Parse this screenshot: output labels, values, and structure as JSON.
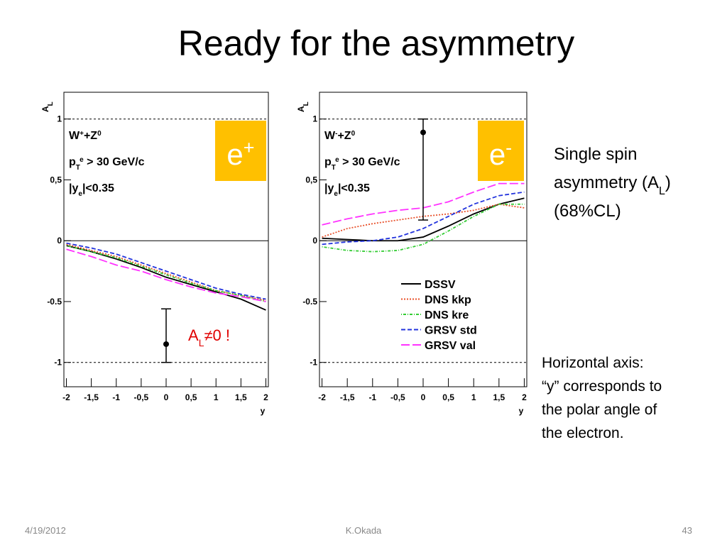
{
  "title": "Ready for the asymmetry",
  "side_text": {
    "lines": [
      [
        {
          "t": "Single spin"
        }
      ],
      [
        {
          "t": "asymmetry (A"
        },
        {
          "t": "L",
          "sub": true
        },
        {
          "t": ")"
        }
      ],
      [
        {
          "t": "(68%CL)"
        }
      ]
    ]
  },
  "note": {
    "lines": [
      "Horizontal axis:",
      "“y” corresponds to",
      "the polar angle of",
      "the electron."
    ]
  },
  "footer": {
    "date": "4/19/2012",
    "author": "K.Okada",
    "page": "43"
  },
  "chart_data": [
    {
      "type": "line",
      "ylabel": [
        {
          "t": "A"
        },
        {
          "t": "L",
          "sub": true
        }
      ],
      "xlabel": "y",
      "xlim": [
        -2.05,
        2.05
      ],
      "ylim": [
        -1.2,
        1.22
      ],
      "xticks": [
        -2,
        {
          "value": -1.5,
          "label": "-1,5"
        },
        -1,
        {
          "value": -0.5,
          "label": "-0,5"
        },
        0,
        {
          "value": 0.5,
          "label": "0,5"
        },
        1,
        {
          "value": 1.5,
          "label": "1,5"
        },
        2
      ],
      "yticks": [
        -1,
        -0.5,
        0,
        {
          "value": 0.5,
          "label": "0,5"
        },
        1
      ],
      "reflines": [
        {
          "value": 1,
          "style": "dashed"
        },
        {
          "value": 0,
          "style": "solid"
        },
        {
          "value": -1,
          "style": "dashed"
        }
      ],
      "x": [
        -2,
        -1.5,
        -1,
        -0.5,
        0,
        0.5,
        1,
        1.5,
        2
      ],
      "series": [
        {
          "color": "#000000",
          "style": "solid",
          "values": [
            -0.04,
            -0.09,
            -0.15,
            -0.22,
            -0.3,
            -0.36,
            -0.42,
            -0.48,
            -0.57
          ]
        },
        {
          "color": "#e8502a",
          "style": "dotted",
          "values": [
            -0.03,
            -0.08,
            -0.13,
            -0.2,
            -0.27,
            -0.34,
            -0.41,
            -0.45,
            -0.49
          ]
        },
        {
          "color": "#33cc33",
          "style": "dashdot",
          "values": [
            -0.04,
            -0.09,
            -0.14,
            -0.21,
            -0.28,
            -0.35,
            -0.41,
            -0.45,
            -0.5
          ]
        },
        {
          "color": "#2233dd",
          "style": "dashed",
          "values": [
            -0.02,
            -0.06,
            -0.11,
            -0.18,
            -0.25,
            -0.32,
            -0.39,
            -0.44,
            -0.48
          ]
        },
        {
          "color": "#ff33ff",
          "style": "longdash",
          "values": [
            -0.07,
            -0.13,
            -0.2,
            -0.25,
            -0.32,
            -0.38,
            -0.43,
            -0.46,
            -0.5
          ]
        }
      ],
      "points": [
        {
          "x": 0,
          "y": -0.85,
          "ylow": -1,
          "yhigh": -0.56
        }
      ],
      "annotation": [
        [
          {
            "t": "W"
          },
          {
            "t": "+",
            "sup": true
          },
          {
            "t": "+Z"
          },
          {
            "t": "0",
            "sup": true
          }
        ],
        [
          {
            "t": "p"
          },
          {
            "t": "T",
            "sub": true
          },
          {
            "t": "e",
            "sup": true
          },
          {
            "t": " > 30 GeV/c"
          }
        ],
        [
          {
            "t": "|y"
          },
          {
            "t": "e",
            "sub": true
          },
          {
            "t": "|<0.35"
          }
        ]
      ],
      "badge": [
        {
          "t": "e"
        },
        {
          "t": "+",
          "sup": true
        }
      ],
      "callout": [
        {
          "t": "A"
        },
        {
          "t": "L",
          "sub": true
        },
        {
          "t": "≠0 !"
        }
      ]
    },
    {
      "type": "line",
      "ylabel": [
        {
          "t": "A"
        },
        {
          "t": "L",
          "sub": true
        }
      ],
      "xlabel": "y",
      "xlim": [
        -2.05,
        2.05
      ],
      "ylim": [
        -1.2,
        1.22
      ],
      "xticks": [
        -2,
        {
          "value": -1.5,
          "label": "-1,5"
        },
        -1,
        {
          "value": -0.5,
          "label": "-0,5"
        },
        0,
        {
          "value": 0.5,
          "label": "0,5"
        },
        1,
        {
          "value": 1.5,
          "label": "1,5"
        },
        2
      ],
      "yticks": [
        -1,
        -0.5,
        0,
        {
          "value": 0.5,
          "label": "0,5"
        },
        1
      ],
      "reflines": [
        {
          "value": 1,
          "style": "dashed"
        },
        {
          "value": 0,
          "style": "solid"
        },
        {
          "value": -1,
          "style": "dashed"
        }
      ],
      "x": [
        -2,
        -1.5,
        -1,
        -0.5,
        0,
        0.5,
        1,
        1.5,
        2
      ],
      "legend": "lower right",
      "series": [
        {
          "name": "DSSV",
          "color": "#000000",
          "style": "solid",
          "values": [
            0.02,
            0.01,
            0,
            0,
            0.03,
            0.12,
            0.22,
            0.3,
            0.35
          ]
        },
        {
          "name": "DNS kkp",
          "color": "#e8502a",
          "style": "dotted",
          "values": [
            0.03,
            0.1,
            0.14,
            0.17,
            0.2,
            0.22,
            0.25,
            0.3,
            0.27
          ]
        },
        {
          "name": "DNS kre",
          "color": "#33cc33",
          "style": "dashdot",
          "values": [
            -0.05,
            -0.08,
            -0.09,
            -0.08,
            -0.03,
            0.08,
            0.2,
            0.3,
            0.3
          ]
        },
        {
          "name": "GRSV std",
          "color": "#2233dd",
          "style": "dashed",
          "values": [
            -0.03,
            -0.01,
            0,
            0.03,
            0.1,
            0.2,
            0.3,
            0.37,
            0.4
          ]
        },
        {
          "name": "GRSV val",
          "color": "#ff33ff",
          "style": "longdash",
          "values": [
            0.13,
            0.18,
            0.22,
            0.25,
            0.27,
            0.32,
            0.4,
            0.47,
            0.47
          ]
        }
      ],
      "points": [
        {
          "x": 0,
          "y": 0.89,
          "ylow": 0.17,
          "yhigh": 1
        }
      ],
      "annotation": [
        [
          {
            "t": "W"
          },
          {
            "t": "-",
            "sup": true
          },
          {
            "t": "+Z"
          },
          {
            "t": "0",
            "sup": true
          }
        ],
        [
          {
            "t": "p"
          },
          {
            "t": "T",
            "sub": true
          },
          {
            "t": "e",
            "sup": true
          },
          {
            "t": " > 30 GeV/c"
          }
        ],
        [
          {
            "t": "|y"
          },
          {
            "t": "e",
            "sub": true
          },
          {
            "t": "|<0.35"
          }
        ]
      ],
      "badge": [
        {
          "t": "e"
        },
        {
          "t": "-",
          "sup": true
        }
      ]
    }
  ]
}
